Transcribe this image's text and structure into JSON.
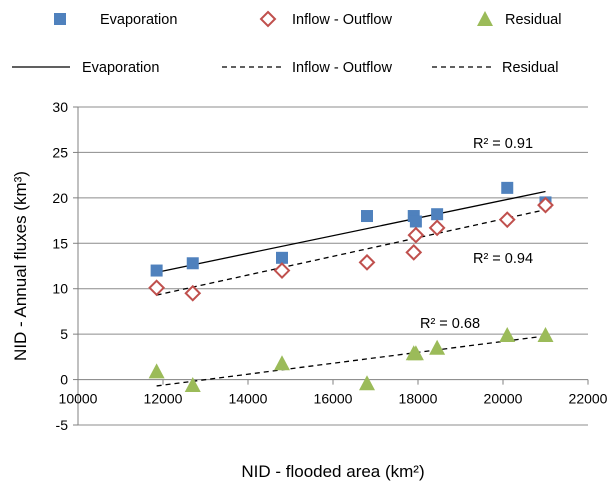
{
  "chart_data": {
    "type": "scatter",
    "xlabel": "NID - flooded area (km²)",
    "ylabel": "NID - Annual fluxes (km³)",
    "xlim": [
      10000,
      22000
    ],
    "ylim": [
      -5,
      30
    ],
    "xticks": [
      10000,
      12000,
      14000,
      16000,
      18000,
      20000,
      22000
    ],
    "yticks": [
      -5,
      0,
      5,
      10,
      15,
      20,
      25,
      30
    ],
    "grid": "horizontal",
    "legend_position": "top",
    "series": [
      {
        "name": "Evaporation",
        "marker": "square",
        "color": "#4F81BD",
        "points": [
          [
            11850,
            12.0
          ],
          [
            12700,
            12.8
          ],
          [
            14800,
            13.4
          ],
          [
            16800,
            18.0
          ],
          [
            17900,
            18.0
          ],
          [
            17950,
            17.4
          ],
          [
            18450,
            18.2
          ],
          [
            20100,
            21.1
          ],
          [
            21000,
            19.5
          ]
        ]
      },
      {
        "name": "Inflow - Outflow",
        "marker": "diamond-open",
        "color": "#C0504D",
        "points": [
          [
            11850,
            10.1
          ],
          [
            12700,
            9.5
          ],
          [
            14800,
            12.0
          ],
          [
            16800,
            12.9
          ],
          [
            17900,
            14.0
          ],
          [
            17950,
            15.9
          ],
          [
            18450,
            16.7
          ],
          [
            20100,
            17.6
          ],
          [
            21000,
            19.2
          ]
        ]
      },
      {
        "name": "Residual",
        "marker": "triangle",
        "color": "#9BBB59",
        "points": [
          [
            11850,
            0.9
          ],
          [
            12700,
            -0.6
          ],
          [
            14800,
            1.8
          ],
          [
            16800,
            -0.4
          ],
          [
            17900,
            2.9
          ],
          [
            17950,
            2.9
          ],
          [
            18450,
            3.5
          ],
          [
            20100,
            4.9
          ],
          [
            21000,
            4.9
          ]
        ]
      }
    ],
    "trendlines": [
      {
        "name": "Evaporation",
        "style": "solid",
        "x": [
          11850,
          21000
        ],
        "y": [
          11.8,
          20.7
        ],
        "r2_label": "R² = 0.91"
      },
      {
        "name": "Inflow - Outflow",
        "style": "dashed",
        "x": [
          11850,
          21000
        ],
        "y": [
          9.3,
          18.7
        ],
        "r2_label": "R² = 0.94"
      },
      {
        "name": "Residual",
        "style": "dashed",
        "x": [
          11850,
          21000
        ],
        "y": [
          -0.7,
          4.8
        ],
        "r2_label": "R² = 0.68"
      }
    ]
  }
}
